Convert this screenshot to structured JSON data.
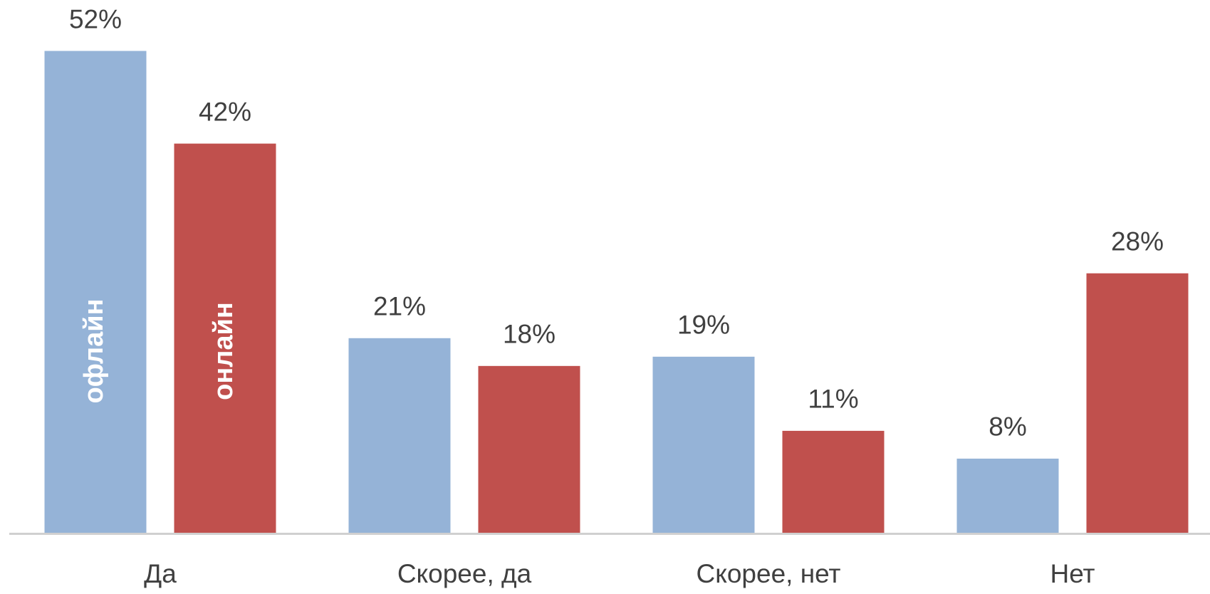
{
  "chart_data": {
    "type": "bar",
    "categories": [
      "Да",
      "Скорее, да",
      "Скорее, нет",
      "Нет"
    ],
    "series": [
      {
        "name": "офлайн",
        "color": "#95b3d7",
        "values": [
          52,
          21,
          19,
          8
        ],
        "value_labels": [
          "52%",
          "21%",
          "19%",
          "8%"
        ]
      },
      {
        "name": "онлайн",
        "color": "#c0504d",
        "values": [
          42,
          18,
          11,
          28
        ],
        "value_labels": [
          "42%",
          "18%",
          "11%",
          "28%"
        ]
      }
    ],
    "ylim": [
      0,
      55
    ]
  }
}
